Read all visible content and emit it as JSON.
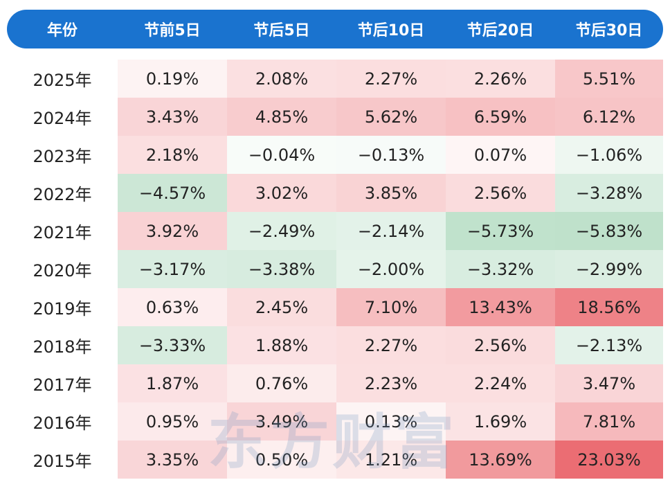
{
  "header": {
    "columns": [
      "年份",
      "节前5日",
      "节后5日",
      "节后10日",
      "节后20日",
      "节后30日"
    ]
  },
  "watermark": "东方财富",
  "colors": {
    "header_bg": "#1a73cf",
    "positive": "#e8545a",
    "negative": "#5fb47e"
  },
  "chart_data": {
    "type": "table",
    "columns": [
      "年份",
      "节前5日",
      "节后5日",
      "节后10日",
      "节后20日",
      "节后30日"
    ],
    "rows": [
      {
        "year": "2025年",
        "values": [
          "0.19%",
          "2.08%",
          "2.27%",
          "2.26%",
          "5.51%"
        ],
        "numbers": [
          0.19,
          2.08,
          2.27,
          2.26,
          5.51
        ]
      },
      {
        "year": "2024年",
        "values": [
          "3.43%",
          "4.85%",
          "5.62%",
          "6.59%",
          "6.12%"
        ],
        "numbers": [
          3.43,
          4.85,
          5.62,
          6.59,
          6.12
        ]
      },
      {
        "year": "2023年",
        "values": [
          "2.18%",
          "−0.04%",
          "−0.13%",
          "0.07%",
          "−1.06%"
        ],
        "numbers": [
          2.18,
          -0.04,
          -0.13,
          0.07,
          -1.06
        ]
      },
      {
        "year": "2022年",
        "values": [
          "−4.57%",
          "3.02%",
          "3.85%",
          "2.56%",
          "−3.28%"
        ],
        "numbers": [
          -4.57,
          3.02,
          3.85,
          2.56,
          -3.28
        ]
      },
      {
        "year": "2021年",
        "values": [
          "3.92%",
          "−2.49%",
          "−2.14%",
          "−5.73%",
          "−5.83%"
        ],
        "numbers": [
          3.92,
          -2.49,
          -2.14,
          -5.73,
          -5.83
        ]
      },
      {
        "year": "2020年",
        "values": [
          "−3.17%",
          "−3.38%",
          "−2.00%",
          "−3.32%",
          "−2.99%"
        ],
        "numbers": [
          -3.17,
          -3.38,
          -2.0,
          -3.32,
          -2.99
        ]
      },
      {
        "year": "2019年",
        "values": [
          "0.63%",
          "2.45%",
          "7.10%",
          "13.43%",
          "18.56%"
        ],
        "numbers": [
          0.63,
          2.45,
          7.1,
          13.43,
          18.56
        ]
      },
      {
        "year": "2018年",
        "values": [
          "−3.33%",
          "1.88%",
          "2.27%",
          "2.56%",
          "−2.13%"
        ],
        "numbers": [
          -3.33,
          1.88,
          2.27,
          2.56,
          -2.13
        ]
      },
      {
        "year": "2017年",
        "values": [
          "1.87%",
          "0.76%",
          "2.23%",
          "2.24%",
          "3.47%"
        ],
        "numbers": [
          1.87,
          0.76,
          2.23,
          2.24,
          3.47
        ]
      },
      {
        "year": "2016年",
        "values": [
          "0.95%",
          "3.49%",
          "0.13%",
          "1.69%",
          "7.81%"
        ],
        "numbers": [
          0.95,
          3.49,
          0.13,
          1.69,
          7.81
        ]
      },
      {
        "year": "2015年",
        "values": [
          "3.35%",
          "0.50%",
          "1.21%",
          "13.69%",
          "23.03%"
        ],
        "numbers": [
          3.35,
          0.5,
          1.21,
          13.69,
          23.03
        ]
      }
    ]
  }
}
